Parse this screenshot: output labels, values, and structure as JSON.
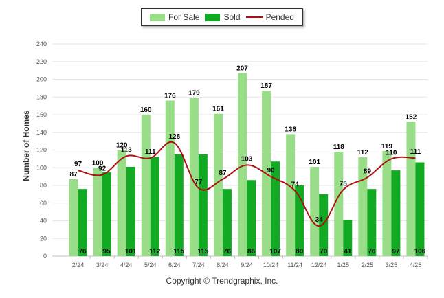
{
  "chart_data": {
    "type": "bar",
    "categories": [
      "2/24",
      "3/24",
      "4/24",
      "5/24",
      "6/24",
      "7/24",
      "8/24",
      "9/24",
      "10/24",
      "11/24",
      "12/24",
      "1/25",
      "2/25",
      "3/25",
      "4/25"
    ],
    "series": [
      {
        "name": "For Sale",
        "type": "bar",
        "color": "#99dd88",
        "values": [
          87,
          100,
          120,
          160,
          176,
          179,
          161,
          207,
          187,
          138,
          101,
          118,
          112,
          119,
          152
        ]
      },
      {
        "name": "Sold",
        "type": "bar",
        "color": "#11aa22",
        "values": [
          76,
          95,
          101,
          112,
          115,
          115,
          76,
          86,
          107,
          80,
          70,
          41,
          76,
          97,
          106
        ]
      },
      {
        "name": "Pended",
        "type": "line",
        "color": "#aa1111",
        "values": [
          97,
          92,
          113,
          111,
          128,
          77,
          87,
          103,
          90,
          74,
          34,
          75,
          89,
          110,
          111
        ]
      }
    ],
    "ylabel": "Number of Homes",
    "yticks": [
      0,
      20,
      40,
      60,
      80,
      100,
      120,
      140,
      160,
      180,
      200,
      220,
      240
    ],
    "ylim": [
      0,
      240
    ],
    "grid": true,
    "legend_position": "top-center"
  },
  "legend": [
    {
      "label": "For Sale",
      "color": "#99dd88"
    },
    {
      "label": "Sold",
      "color": "#11aa22"
    },
    {
      "label": "Pended",
      "color": "#aa1111"
    }
  ],
  "footer": {
    "copyright": "Copyright © Trendgraphix, Inc."
  }
}
